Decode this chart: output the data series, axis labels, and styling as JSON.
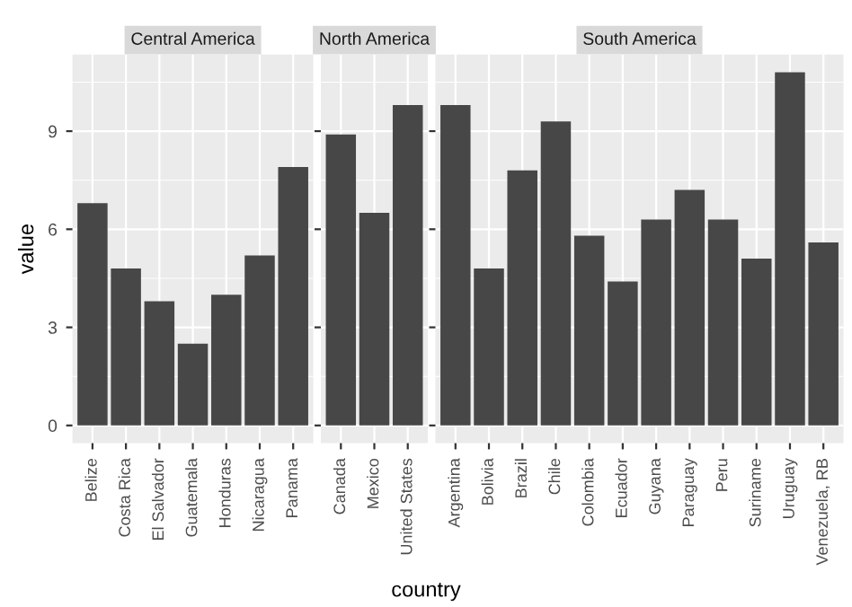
{
  "chart_data": [
    {
      "type": "bar",
      "title": "Central America",
      "ylabel": "value",
      "categories": [
        "Belize",
        "Costa Rica",
        "El Salvador",
        "Guatemala",
        "Honduras",
        "Nicaragua",
        "Panama"
      ],
      "values": [
        6.8,
        4.8,
        3.8,
        2.5,
        4.0,
        5.2,
        7.9
      ],
      "color": "#474747",
      "ylim": [
        -0.54,
        11.34
      ],
      "yticks": [
        0,
        3,
        6,
        9
      ],
      "grid": true
    },
    {
      "type": "bar",
      "title": "North America",
      "xlabel": "country",
      "categories": [
        "Canada",
        "Mexico",
        "United States"
      ],
      "values": [
        8.9,
        6.5,
        9.8
      ],
      "color": "#474747",
      "ylim": [
        -0.54,
        11.34
      ],
      "tick_labels": "x",
      "grid": true
    },
    {
      "type": "bar",
      "title": "South America",
      "categories": [
        "Argentina",
        "Bolivia",
        "Brazil",
        "Chile",
        "Colombia",
        "Ecuador",
        "Guyana",
        "Paraguay",
        "Peru",
        "Suriname",
        "Uruguay",
        "Venezuela, RB"
      ],
      "values": [
        9.8,
        4.8,
        7.8,
        9.3,
        5.8,
        4.4,
        6.3,
        7.2,
        6.3,
        5.1,
        10.8,
        5.6
      ],
      "color": "#474747",
      "ylim": [
        -0.54,
        11.34
      ],
      "tick_labels": "x",
      "grid": true
    }
  ]
}
